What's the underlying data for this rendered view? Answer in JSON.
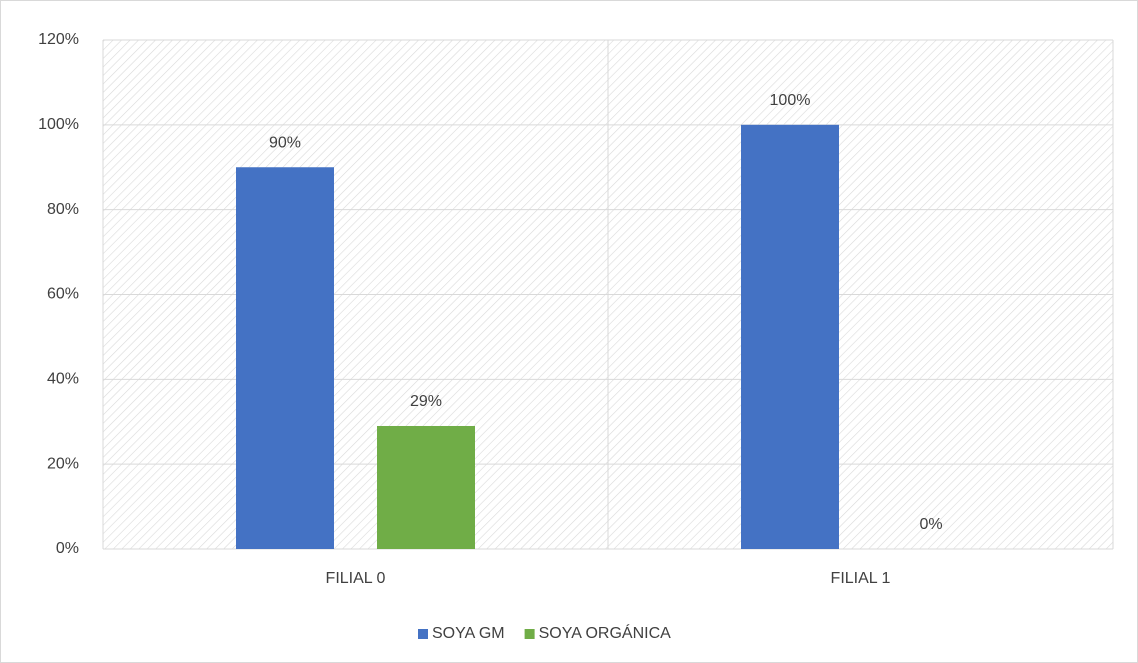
{
  "chart_data": {
    "type": "bar",
    "categories": [
      "FILIAL 0",
      "FILIAL 1"
    ],
    "series": [
      {
        "name": "SOYA GM",
        "color": "#4472c4",
        "values": [
          90,
          100
        ],
        "value_labels": [
          "90%",
          "100%"
        ]
      },
      {
        "name": "SOYA ORGÁNICA",
        "color": "#70ad47",
        "values": [
          29,
          0
        ],
        "value_labels": [
          "29%",
          "0%"
        ]
      }
    ],
    "ylim": [
      0,
      120
    ],
    "yticks": [
      {
        "value": 0,
        "label": "0%"
      },
      {
        "value": 20,
        "label": "20%"
      },
      {
        "value": 40,
        "label": "40%"
      },
      {
        "value": 60,
        "label": "60%"
      },
      {
        "value": 80,
        "label": "80%"
      },
      {
        "value": 100,
        "label": "100%"
      },
      {
        "value": 120,
        "label": "120%"
      }
    ],
    "grid": true,
    "legend": "bottom"
  }
}
